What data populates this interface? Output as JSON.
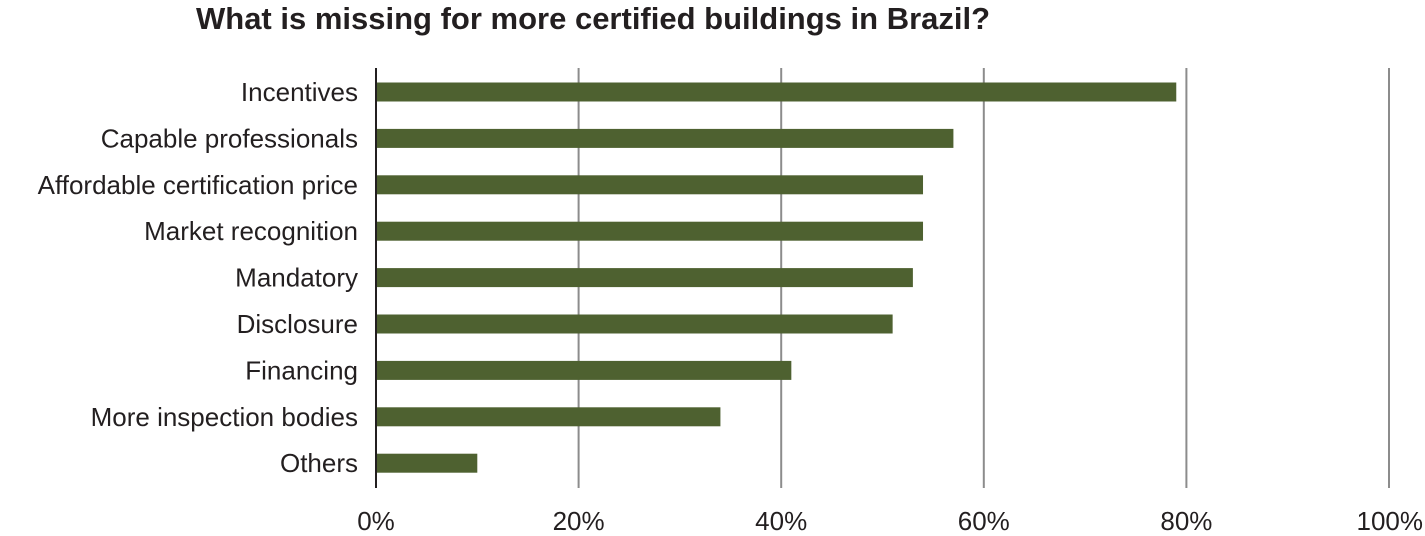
{
  "chart_data": {
    "type": "bar",
    "orientation": "horizontal",
    "title": "What is missing for more certified buildings in Brazil?",
    "xlabel": "",
    "ylabel": "",
    "categories": [
      "Incentives",
      "Capable professionals",
      "Affordable certification price",
      "Market recognition",
      "Mandatory",
      "Disclosure",
      "Financing",
      "More inspection bodies",
      "Others"
    ],
    "values": [
      79,
      57,
      54,
      54,
      53,
      51,
      41,
      34,
      10
    ],
    "xlim": [
      0,
      100
    ],
    "ticks": [
      0,
      20,
      40,
      60,
      80,
      100
    ],
    "tick_labels": [
      "0%",
      "20%",
      "40%",
      "60%",
      "80%",
      "100%"
    ],
    "grid": true,
    "legend": "none",
    "bar_color": "#4e6130",
    "grid_color": "#8c8c8c",
    "axis_color": "#231f20"
  }
}
